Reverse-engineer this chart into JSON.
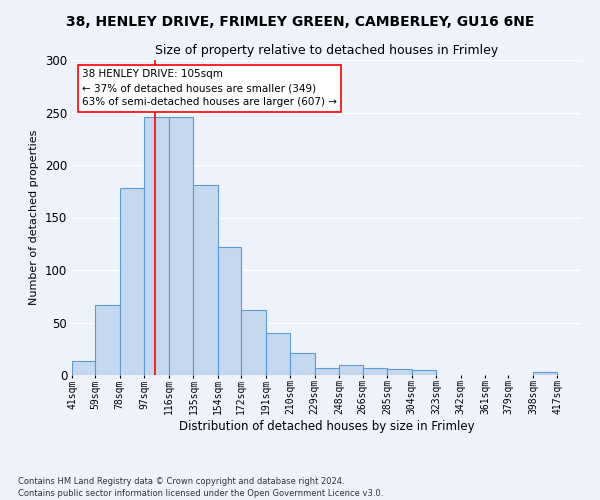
{
  "title1": "38, HENLEY DRIVE, FRIMLEY GREEN, CAMBERLEY, GU16 6NE",
  "title2": "Size of property relative to detached houses in Frimley",
  "xlabel": "Distribution of detached houses by size in Frimley",
  "ylabel": "Number of detached properties",
  "footnote": "Contains HM Land Registry data © Crown copyright and database right 2024.\nContains public sector information licensed under the Open Government Licence v3.0.",
  "annotation_line1": "38 HENLEY DRIVE: 105sqm",
  "annotation_line2": "← 37% of detached houses are smaller (349)",
  "annotation_line3": "63% of semi-detached houses are larger (607) →",
  "bar_color": "#c5d8f0",
  "bar_edge_color": "#5b9bd5",
  "property_line_x": 105,
  "categories": [
    "41sqm",
    "59sqm",
    "78sqm",
    "97sqm",
    "116sqm",
    "135sqm",
    "154sqm",
    "172sqm",
    "191sqm",
    "210sqm",
    "229sqm",
    "248sqm",
    "266sqm",
    "285sqm",
    "304sqm",
    "323sqm",
    "342sqm",
    "361sqm",
    "379sqm",
    "398sqm",
    "417sqm"
  ],
  "bin_edges": [
    41,
    59,
    78,
    97,
    116,
    135,
    154,
    172,
    191,
    210,
    229,
    248,
    266,
    285,
    304,
    323,
    342,
    361,
    379,
    398,
    417,
    436
  ],
  "values": [
    13,
    67,
    178,
    246,
    246,
    181,
    122,
    62,
    40,
    21,
    7,
    10,
    7,
    6,
    5,
    0,
    0,
    0,
    0,
    3,
    0
  ],
  "ylim": [
    0,
    300
  ],
  "yticks": [
    0,
    50,
    100,
    150,
    200,
    250,
    300
  ],
  "background_color": "#eef2fb",
  "grid_color": "#ffffff",
  "title_fontsize": 10,
  "subtitle_fontsize": 9
}
